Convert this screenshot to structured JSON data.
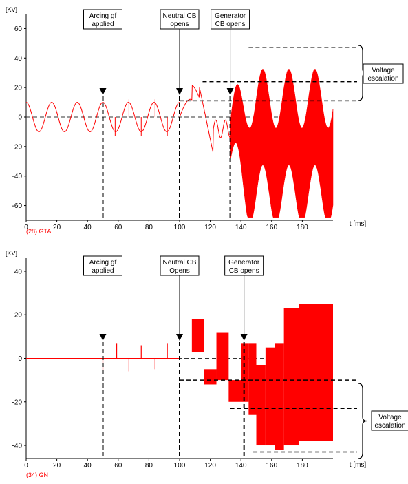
{
  "chart_data": [
    {
      "type": "line",
      "ylabel": "[KV]",
      "xlabel": "t [ms]",
      "caption": "(28) GTA",
      "xlim": [
        0,
        200
      ],
      "ylim": [
        -70,
        70
      ],
      "xticks": [
        "0",
        "20",
        "40",
        "60",
        "80",
        "100",
        "120",
        "140",
        "160",
        "180"
      ],
      "yticks": [
        "60",
        "40",
        "20",
        "0",
        "-20",
        "-40",
        "-60"
      ],
      "series_color": "#ff0000",
      "annotations": [
        {
          "text": [
            "Arcing gf",
            "applied"
          ],
          "x": 50
        },
        {
          "text": [
            "Neutral CB",
            "opens"
          ],
          "x": 100
        },
        {
          "text": [
            "Generator",
            "CB opens"
          ],
          "x": 133
        }
      ],
      "escalation_label": [
        "Voltage",
        "escalation"
      ],
      "escalation_levels_kv": [
        47,
        24,
        11
      ]
    },
    {
      "type": "line",
      "ylabel": "[KV]",
      "xlabel": "t [ms]",
      "caption": "(34) GN",
      "xlim": [
        0,
        200
      ],
      "ylim": [
        -46,
        46
      ],
      "xticks": [
        "0",
        "20",
        "40",
        "60",
        "80",
        "100",
        "120",
        "140",
        "160",
        "180"
      ],
      "yticks": [
        "40",
        "20",
        "0",
        "-20",
        "-40"
      ],
      "series_color": "#ff0000",
      "annotations": [
        {
          "text": [
            "Arcing gf",
            "applied"
          ],
          "x": 50
        },
        {
          "text": [
            "Neutral CB",
            "Opens"
          ],
          "x": 100
        },
        {
          "text": [
            "Generator",
            "CB opens"
          ],
          "x": 142
        }
      ],
      "escalation_label": [
        "Voltage",
        "escalation"
      ],
      "escalation_levels_kv": [
        -10,
        -23,
        -43
      ]
    }
  ]
}
